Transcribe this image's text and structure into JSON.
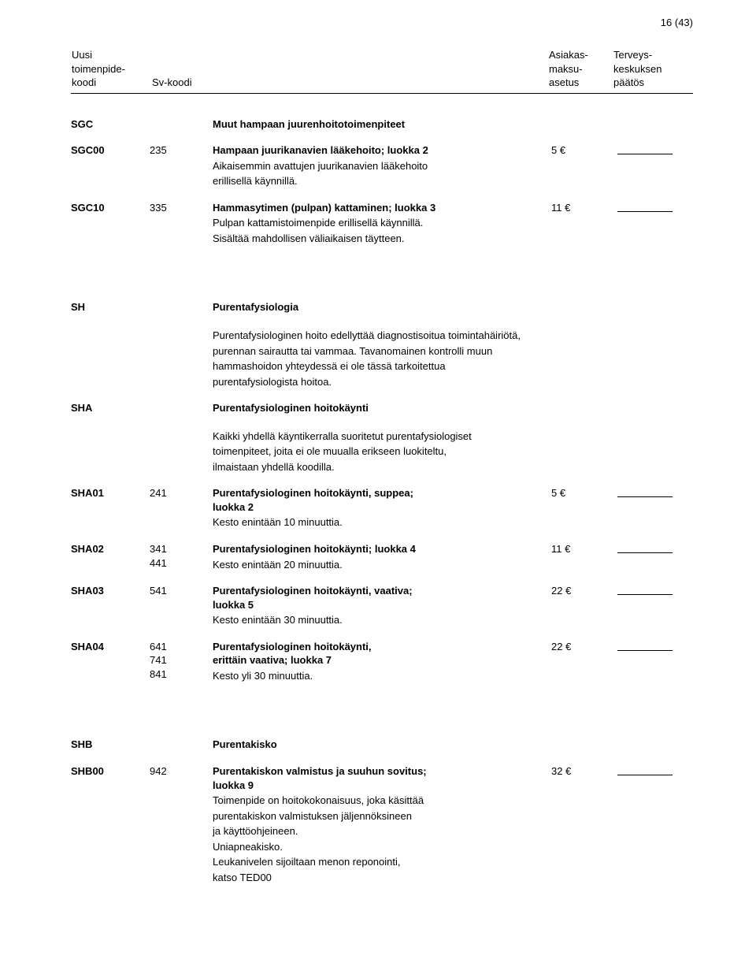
{
  "page_indicator": "16 (43)",
  "header": {
    "col1": [
      "Uusi",
      "toimenpide-",
      "koodi"
    ],
    "col2": [
      "",
      "",
      "Sv-koodi"
    ],
    "col3": "",
    "col4": [
      "Asiakas-",
      "maksu-",
      "asetus"
    ],
    "col5": [
      "Terveys-",
      "keskuksen",
      "päätös"
    ]
  },
  "rows": [
    {
      "type": "section",
      "code": "SGC",
      "title": "Muut hampaan juurenhoitotoimenpiteet"
    },
    {
      "type": "entry",
      "code": "SGC00",
      "sv": [
        "235"
      ],
      "title": "Hampaan juurikanavien lääkehoito; luokka 2",
      "notes": [
        "Aikaisemmin avattujen juurikanavien lääkehoito",
        "erillisellä käynnillä."
      ],
      "fee": "5 €",
      "blank": true
    },
    {
      "type": "entry",
      "code": "SGC10",
      "sv": [
        "335"
      ],
      "title": "Hammasytimen (pulpan) kattaminen; luokka 3",
      "notes": [
        "Pulpan kattamistoimenpide erillisellä käynnillä.",
        "Sisältää mahdollisen väliaikaisen täytteen."
      ],
      "fee": "11 €",
      "blank": true
    },
    {
      "type": "biggap"
    },
    {
      "type": "section",
      "code": "SH",
      "title": "Purentafysiologia"
    },
    {
      "type": "para",
      "lines": [
        "Purentafysiologinen hoito edellyttää diagnostisoitua toimintahäiriötä,",
        "purennan sairautta tai vammaa. Tavanomainen kontrolli muun",
        "hammashoidon yhteydessä ei ole tässä tarkoitettua",
        "purentafysiologista hoitoa."
      ]
    },
    {
      "type": "section",
      "code": "SHA",
      "title": "Purentafysiologinen hoitokäynti"
    },
    {
      "type": "para",
      "lines": [
        "Kaikki yhdellä käyntikerralla suoritetut purentafysiologiset",
        "toimenpiteet, joita ei ole muualla erikseen luokiteltu,",
        "ilmaistaan yhdellä koodilla."
      ]
    },
    {
      "type": "entry",
      "code": "SHA01",
      "sv": [
        "241"
      ],
      "title": "Purentafysiologinen hoitokäynti, suppea;",
      "title2": "luokka 2",
      "notes": [
        "Kesto enintään 10 minuuttia."
      ],
      "fee": "5 €",
      "blank": true
    },
    {
      "type": "entry",
      "code": "SHA02",
      "sv": [
        "341",
        "441"
      ],
      "title": "Purentafysiologinen hoitokäynti; luokka 4",
      "notes": [
        "Kesto enintään 20 minuuttia."
      ],
      "fee": "11 €",
      "blank": true
    },
    {
      "type": "entry",
      "code": "SHA03",
      "sv": [
        "541"
      ],
      "title": "Purentafysiologinen hoitokäynti, vaativa;",
      "title2": "luokka 5",
      "notes": [
        "Kesto enintään 30 minuuttia."
      ],
      "fee": "22 €",
      "blank": true
    },
    {
      "type": "entry",
      "code": "SHA04",
      "sv": [
        "641",
        "741",
        "841"
      ],
      "title": "Purentafysiologinen hoitokäynti,",
      "title2": "erittäin vaativa; luokka 7",
      "notes": [
        "Kesto yli 30 minuuttia."
      ],
      "fee": "22 €",
      "blank": true
    },
    {
      "type": "biggap"
    },
    {
      "type": "section",
      "code": "SHB",
      "title": "Purentakisko"
    },
    {
      "type": "entry",
      "code": "SHB00",
      "sv": [
        "942"
      ],
      "title": "Purentakiskon valmistus ja suuhun sovitus;",
      "title2": "luokka 9",
      "notes": [
        "Toimenpide on hoitokokonaisuus, joka käsittää",
        "purentakiskon valmistuksen jäljennöksineen",
        "ja käyttöohjeineen.",
        "Uniapneakisko.",
        "Leukanivelen sijoiltaan menon reponointi,",
        "katso TED00"
      ],
      "fee": "32 €",
      "blank": true
    }
  ]
}
